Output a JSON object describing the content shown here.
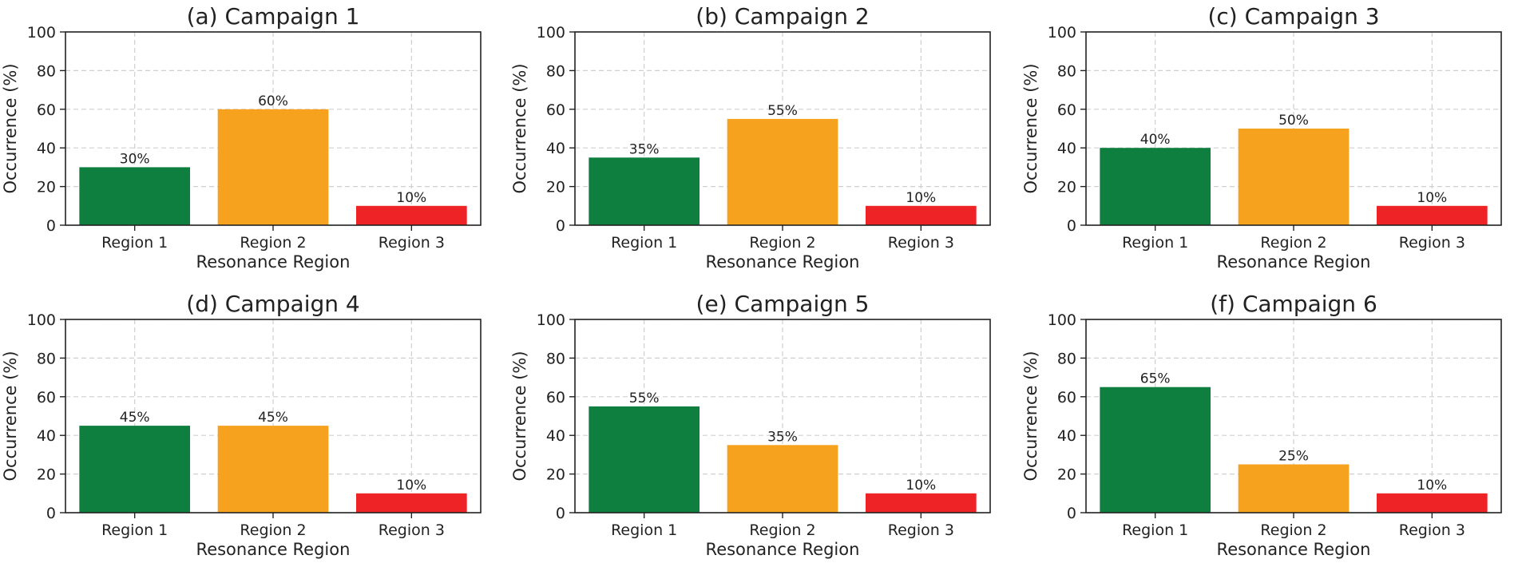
{
  "colors": {
    "region_1": "#0f7f3f",
    "region_2": "#f7a21f",
    "region_3": "#ee2326"
  },
  "chart_data": [
    {
      "type": "bar",
      "title": "(a) Campaign 1",
      "xlabel": "Resonance Region",
      "ylabel": "Occurrence (%)",
      "categories": [
        "Region 1",
        "Region 2",
        "Region 3"
      ],
      "values": [
        30,
        60,
        10
      ],
      "value_labels": [
        "30%",
        "60%",
        "10%"
      ],
      "ylim": [
        0,
        100
      ],
      "yticks": [
        "0",
        "20",
        "40",
        "60",
        "80",
        "100"
      ],
      "grid": true
    },
    {
      "type": "bar",
      "title": "(b) Campaign 2",
      "xlabel": "Resonance Region",
      "ylabel": "Occurrence (%)",
      "categories": [
        "Region 1",
        "Region 2",
        "Region 3"
      ],
      "values": [
        35,
        55,
        10
      ],
      "value_labels": [
        "35%",
        "55%",
        "10%"
      ],
      "ylim": [
        0,
        100
      ],
      "yticks": [
        "0",
        "20",
        "40",
        "60",
        "80",
        "100"
      ],
      "grid": true
    },
    {
      "type": "bar",
      "title": "(c) Campaign 3",
      "xlabel": "Resonance Region",
      "ylabel": "Occurrence (%)",
      "categories": [
        "Region 1",
        "Region 2",
        "Region 3"
      ],
      "values": [
        40,
        50,
        10
      ],
      "value_labels": [
        "40%",
        "50%",
        "10%"
      ],
      "ylim": [
        0,
        100
      ],
      "yticks": [
        "0",
        "20",
        "40",
        "60",
        "80",
        "100"
      ],
      "grid": true
    },
    {
      "type": "bar",
      "title": "(d) Campaign 4",
      "xlabel": "Resonance Region",
      "ylabel": "Occurrence (%)",
      "categories": [
        "Region 1",
        "Region 2",
        "Region 3"
      ],
      "values": [
        45,
        45,
        10
      ],
      "value_labels": [
        "45%",
        "45%",
        "10%"
      ],
      "ylim": [
        0,
        100
      ],
      "yticks": [
        "0",
        "20",
        "40",
        "60",
        "80",
        "100"
      ],
      "grid": true
    },
    {
      "type": "bar",
      "title": "(e) Campaign 5",
      "xlabel": "Resonance Region",
      "ylabel": "Occurrence (%)",
      "categories": [
        "Region 1",
        "Region 2",
        "Region 3"
      ],
      "values": [
        55,
        35,
        10
      ],
      "value_labels": [
        "55%",
        "35%",
        "10%"
      ],
      "ylim": [
        0,
        100
      ],
      "yticks": [
        "0",
        "20",
        "40",
        "60",
        "80",
        "100"
      ],
      "grid": true
    },
    {
      "type": "bar",
      "title": "(f) Campaign 6",
      "xlabel": "Resonance Region",
      "ylabel": "Occurrence (%)",
      "categories": [
        "Region 1",
        "Region 2",
        "Region 3"
      ],
      "values": [
        65,
        25,
        10
      ],
      "value_labels": [
        "65%",
        "25%",
        "10%"
      ],
      "ylim": [
        0,
        100
      ],
      "yticks": [
        "0",
        "20",
        "40",
        "60",
        "80",
        "100"
      ],
      "grid": true
    }
  ]
}
